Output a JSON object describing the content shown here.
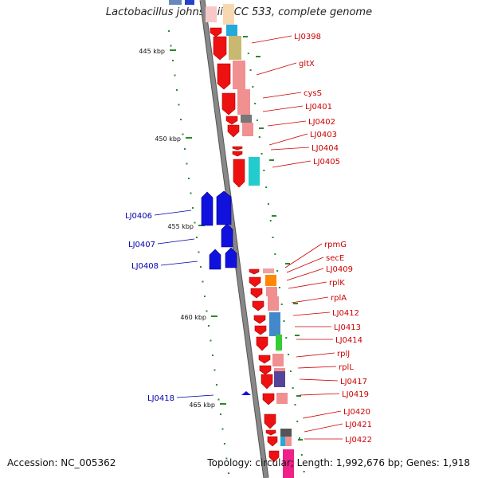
{
  "title": "Lactobacillus johnsonii NCC 533, complete genome",
  "footer": {
    "accession": "Accession: NC_005362",
    "summary": "Topology: circular; Length: 1,992,676 bp; Genes: 1,918"
  },
  "scale_labels": [
    "445 kbp",
    "450 kbp",
    "455 kbp",
    "460 kbp",
    "465 kbp"
  ],
  "forward_gene_labels": [
    "LJ0398",
    "gltX",
    "cysS",
    "LJ0401",
    "LJ0402",
    "LJ0403",
    "LJ0404",
    "LJ0405",
    "rpmG",
    "secE",
    "LJ0409",
    "rplK",
    "rplA",
    "LJ0412",
    "LJ0413",
    "LJ0414",
    "rplJ",
    "rplL",
    "LJ0417",
    "LJ0419",
    "LJ0420",
    "LJ0421",
    "LJ0422"
  ],
  "reverse_gene_labels": [
    "LJ0406",
    "LJ0407",
    "LJ0408",
    "LJ0418"
  ],
  "colors": {
    "forward_strand": "#ee1111",
    "reverse_strand": "#1111dd",
    "forward_label": "#cc0000",
    "reverse_label": "#0000aa",
    "backbone": "#888888",
    "tick": "#2a8a2a"
  }
}
